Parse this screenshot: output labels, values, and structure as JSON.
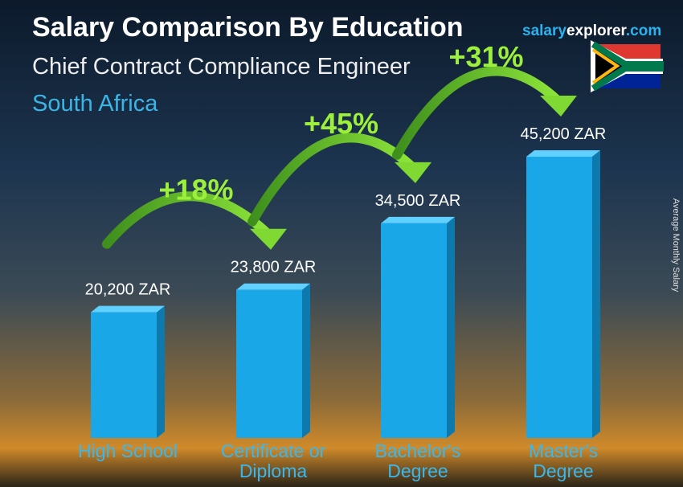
{
  "chart_data": {
    "type": "bar3d",
    "title": "Salary Comparison By Education",
    "subtitle": "Chief Contract Compliance Engineer",
    "location": "South Africa",
    "brand": {
      "salary": "salary",
      "explorer": "explorer",
      "com": ".com"
    },
    "y_label": "Average Monthly Salary",
    "categories": [
      "High School",
      "Certificate or Diploma",
      "Bachelor's Degree",
      "Master's Degree"
    ],
    "values": [
      20200,
      23800,
      34500,
      45200
    ],
    "value_labels": [
      "20,200 ZAR",
      "23,800 ZAR",
      "34,500 ZAR",
      "45,200 ZAR"
    ],
    "annotations": [
      "+18%",
      "+45%",
      "+31%"
    ],
    "color": "#1aa7e8"
  }
}
